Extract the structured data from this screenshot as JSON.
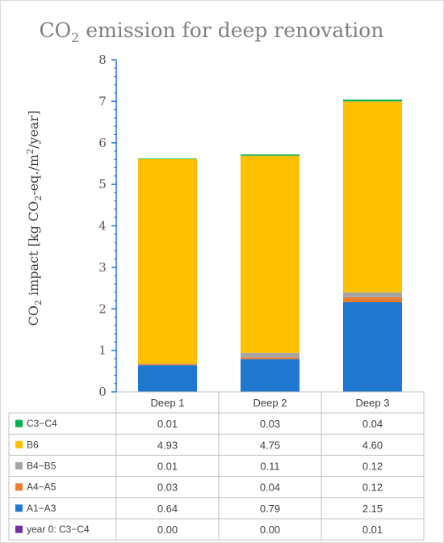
{
  "chart_data": {
    "type": "bar",
    "stacked": true,
    "title_main": "CO",
    "title_sub": "2",
    "title_rest": " emission for deep renovation",
    "ylabel_parts": {
      "p1": "CO",
      "p1_sub": "2",
      "p2": " impact [kg CO",
      "p2_sub": "2",
      "p3": "-eq./m",
      "p3_sup": "2",
      "p4": "/year]"
    },
    "ylim": [
      0,
      8
    ],
    "yticks": [
      "0",
      "1",
      "2",
      "3",
      "4",
      "5",
      "6",
      "7",
      "8"
    ],
    "categories": [
      "Deep 1",
      "Deep 2",
      "Deep 3"
    ],
    "series": [
      {
        "name": "year 0: C3−C4",
        "color": "#7030a0",
        "values": [
          0.0,
          0.0,
          0.01
        ],
        "labels": [
          "0.00",
          "0.00",
          "0.01"
        ]
      },
      {
        "name": "A1−A3",
        "color": "#1f77d0",
        "values": [
          0.64,
          0.79,
          2.15
        ],
        "labels": [
          "0.64",
          "0.79",
          "2.15"
        ]
      },
      {
        "name": "A4−A5",
        "color": "#ed7d31",
        "values": [
          0.03,
          0.04,
          0.12
        ],
        "labels": [
          "0.03",
          "0.04",
          "0.12"
        ]
      },
      {
        "name": "B4−B5",
        "color": "#a5a5a5",
        "values": [
          0.01,
          0.11,
          0.12
        ],
        "labels": [
          "0.01",
          "0.11",
          "0.12"
        ]
      },
      {
        "name": "B6",
        "color": "#ffc000",
        "values": [
          4.93,
          4.75,
          4.6
        ],
        "labels": [
          "4.93",
          "4.75",
          "4.60"
        ]
      },
      {
        "name": "C3−C4",
        "color": "#00b050",
        "values": [
          0.01,
          0.03,
          0.04
        ],
        "labels": [
          "0.01",
          "0.03",
          "0.04"
        ]
      }
    ],
    "table_row_order": [
      "C3−C4",
      "B6",
      "B4−B5",
      "A4−A5",
      "A1−A3",
      "year 0: C3−C4"
    ],
    "grid": false,
    "legend_placement": "data-table-left"
  }
}
